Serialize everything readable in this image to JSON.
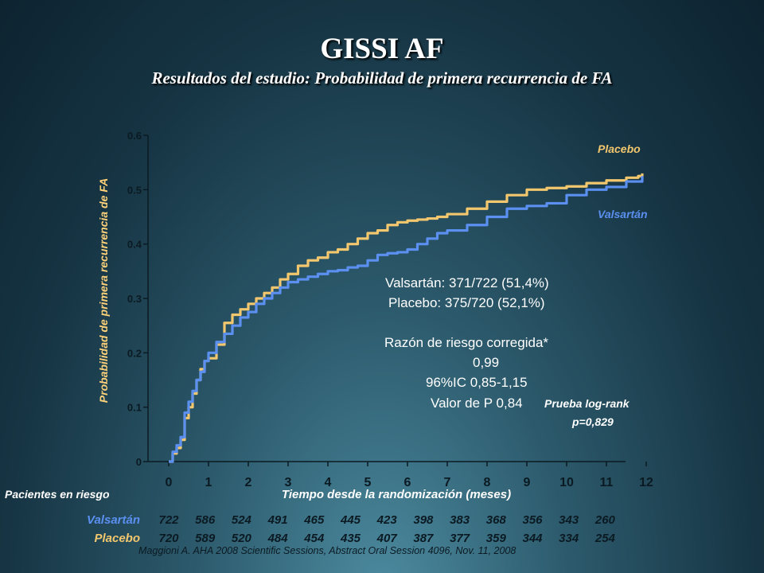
{
  "title": "GISSI AF",
  "subtitle": "Resultados del estudio: Probabilidad de primera recurrencia de FA",
  "chart_data": {
    "type": "line",
    "xlabel": "Tiempo desde la randomización (meses)",
    "ylabel": "Probabilidad de primera recurrencia de FA",
    "xlim": [
      0,
      12
    ],
    "ylim": [
      0,
      0.6
    ],
    "x_ticks": [
      "0",
      "1",
      "2",
      "3",
      "4",
      "5",
      "6",
      "7",
      "8",
      "9",
      "10",
      "11",
      "12"
    ],
    "y_ticks": [
      "0",
      "0.1",
      "0.2",
      "0.3",
      "0.4",
      "0.5",
      "0.6"
    ],
    "grid": false,
    "legend_placement": "right",
    "series": [
      {
        "name": "Placebo",
        "color": "#f2c76e",
        "x": [
          0,
          0.1,
          0.2,
          0.3,
          0.4,
          0.5,
          0.6,
          0.7,
          0.8,
          0.9,
          1.0,
          1.2,
          1.4,
          1.6,
          1.8,
          2.0,
          2.2,
          2.4,
          2.6,
          2.8,
          3.0,
          3.25,
          3.5,
          3.75,
          4.0,
          4.25,
          4.5,
          4.75,
          5.0,
          5.25,
          5.5,
          5.75,
          6.0,
          6.25,
          6.5,
          6.75,
          7.0,
          7.5,
          8.0,
          8.5,
          9.0,
          9.5,
          10.0,
          10.5,
          11.0,
          11.5,
          11.8,
          11.9
        ],
        "y": [
          0,
          0.015,
          0.025,
          0.04,
          0.08,
          0.1,
          0.125,
          0.15,
          0.17,
          0.185,
          0.19,
          0.215,
          0.255,
          0.27,
          0.28,
          0.29,
          0.3,
          0.31,
          0.32,
          0.335,
          0.345,
          0.36,
          0.37,
          0.375,
          0.385,
          0.39,
          0.4,
          0.41,
          0.42,
          0.425,
          0.435,
          0.44,
          0.443,
          0.445,
          0.447,
          0.45,
          0.455,
          0.465,
          0.478,
          0.49,
          0.5,
          0.503,
          0.506,
          0.512,
          0.517,
          0.522,
          0.525,
          0.53
        ]
      },
      {
        "name": "Valsartán",
        "color": "#5b8ff0",
        "x": [
          0,
          0.1,
          0.2,
          0.3,
          0.4,
          0.5,
          0.6,
          0.7,
          0.8,
          0.9,
          1.0,
          1.2,
          1.4,
          1.6,
          1.8,
          2.0,
          2.2,
          2.4,
          2.6,
          2.8,
          3.0,
          3.25,
          3.5,
          3.75,
          4.0,
          4.25,
          4.5,
          4.75,
          5.0,
          5.25,
          5.5,
          5.75,
          6.0,
          6.25,
          6.5,
          6.75,
          7.0,
          7.5,
          8.0,
          8.5,
          9.0,
          9.5,
          10.0,
          10.5,
          11.0,
          11.5,
          11.9
        ],
        "y": [
          0,
          0.018,
          0.03,
          0.045,
          0.09,
          0.11,
          0.13,
          0.15,
          0.165,
          0.185,
          0.2,
          0.22,
          0.235,
          0.25,
          0.265,
          0.275,
          0.29,
          0.3,
          0.31,
          0.32,
          0.33,
          0.335,
          0.34,
          0.345,
          0.35,
          0.352,
          0.357,
          0.36,
          0.37,
          0.38,
          0.383,
          0.385,
          0.39,
          0.4,
          0.41,
          0.42,
          0.425,
          0.435,
          0.45,
          0.465,
          0.47,
          0.475,
          0.49,
          0.5,
          0.505,
          0.515,
          0.525
        ]
      }
    ],
    "annotations": [
      "Valsartán: 371/722 (51,4%)",
      "Placebo: 375/720 (52,1%)",
      "Razón de riesgo corregida*",
      "0,99",
      "96%IC 0,85-1,15",
      "Valor de P 0,84"
    ],
    "logrank": [
      "Prueba log-rank",
      "p=0,829"
    ]
  },
  "at_risk": {
    "title": "Pacientes en riesgo",
    "rows": [
      {
        "label": "Valsartán",
        "color": "#5b8ff0",
        "values": [
          "722",
          "586",
          "524",
          "491",
          "465",
          "445",
          "423",
          "398",
          "383",
          "368",
          "356",
          "343",
          "260"
        ]
      },
      {
        "label": "Placebo",
        "color": "#f2c76e",
        "values": [
          "720",
          "589",
          "520",
          "484",
          "454",
          "435",
          "407",
          "387",
          "377",
          "359",
          "344",
          "334",
          "254"
        ]
      }
    ]
  },
  "footnote": "Maggioni A.  AHA 2008 Scientific Sessions, Abstract Oral Session 4096, Nov. 11, 2008"
}
